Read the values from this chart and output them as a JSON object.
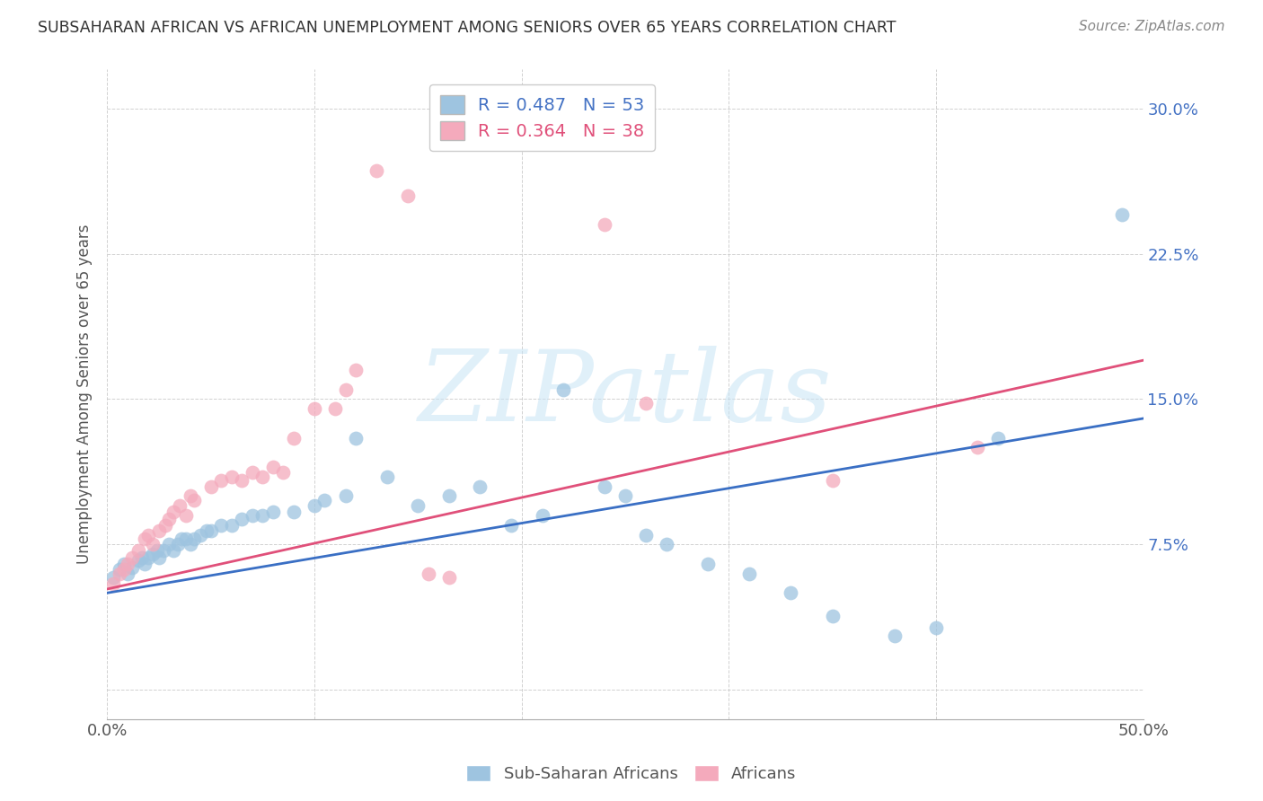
{
  "title": "SUBSAHARAN AFRICAN VS AFRICAN UNEMPLOYMENT AMONG SENIORS OVER 65 YEARS CORRELATION CHART",
  "source": "Source: ZipAtlas.com",
  "ylabel": "Unemployment Among Seniors over 65 years",
  "xlim": [
    0.0,
    0.5
  ],
  "ylim": [
    -0.015,
    0.32
  ],
  "xticks": [
    0.0,
    0.1,
    0.2,
    0.3,
    0.4,
    0.5
  ],
  "xtick_labels": [
    "0.0%",
    "",
    "",
    "",
    "",
    "50.0%"
  ],
  "yticks": [
    0.0,
    0.075,
    0.15,
    0.225,
    0.3
  ],
  "ytick_labels": [
    "",
    "7.5%",
    "15.0%",
    "22.5%",
    "30.0%"
  ],
  "legend_labels": [
    "Sub-Saharan Africans",
    "Africans"
  ],
  "blue_color": "#9EC4E0",
  "pink_color": "#F4AABC",
  "blue_line_color": "#3A6FC4",
  "pink_line_color": "#E0507A",
  "legend_text_color": "#4472C4",
  "R_blue": 0.487,
  "N_blue": 53,
  "R_pink": 0.364,
  "N_pink": 38,
  "watermark": "ZIPatlas",
  "blue_points": [
    [
      0.003,
      0.058
    ],
    [
      0.006,
      0.062
    ],
    [
      0.008,
      0.065
    ],
    [
      0.01,
      0.06
    ],
    [
      0.012,
      0.063
    ],
    [
      0.015,
      0.067
    ],
    [
      0.017,
      0.068
    ],
    [
      0.018,
      0.065
    ],
    [
      0.02,
      0.068
    ],
    [
      0.022,
      0.07
    ],
    [
      0.024,
      0.072
    ],
    [
      0.025,
      0.068
    ],
    [
      0.027,
      0.072
    ],
    [
      0.03,
      0.075
    ],
    [
      0.032,
      0.072
    ],
    [
      0.034,
      0.075
    ],
    [
      0.036,
      0.078
    ],
    [
      0.038,
      0.078
    ],
    [
      0.04,
      0.075
    ],
    [
      0.042,
      0.078
    ],
    [
      0.045,
      0.08
    ],
    [
      0.048,
      0.082
    ],
    [
      0.05,
      0.082
    ],
    [
      0.055,
      0.085
    ],
    [
      0.06,
      0.085
    ],
    [
      0.065,
      0.088
    ],
    [
      0.07,
      0.09
    ],
    [
      0.075,
      0.09
    ],
    [
      0.08,
      0.092
    ],
    [
      0.09,
      0.092
    ],
    [
      0.1,
      0.095
    ],
    [
      0.105,
      0.098
    ],
    [
      0.115,
      0.1
    ],
    [
      0.12,
      0.13
    ],
    [
      0.135,
      0.11
    ],
    [
      0.15,
      0.095
    ],
    [
      0.165,
      0.1
    ],
    [
      0.18,
      0.105
    ],
    [
      0.195,
      0.085
    ],
    [
      0.21,
      0.09
    ],
    [
      0.22,
      0.155
    ],
    [
      0.24,
      0.105
    ],
    [
      0.25,
      0.1
    ],
    [
      0.26,
      0.08
    ],
    [
      0.27,
      0.075
    ],
    [
      0.29,
      0.065
    ],
    [
      0.31,
      0.06
    ],
    [
      0.33,
      0.05
    ],
    [
      0.35,
      0.038
    ],
    [
      0.38,
      0.028
    ],
    [
      0.4,
      0.032
    ],
    [
      0.43,
      0.13
    ],
    [
      0.49,
      0.245
    ]
  ],
  "pink_points": [
    [
      0.003,
      0.055
    ],
    [
      0.006,
      0.06
    ],
    [
      0.008,
      0.062
    ],
    [
      0.01,
      0.065
    ],
    [
      0.012,
      0.068
    ],
    [
      0.015,
      0.072
    ],
    [
      0.018,
      0.078
    ],
    [
      0.02,
      0.08
    ],
    [
      0.022,
      0.075
    ],
    [
      0.025,
      0.082
    ],
    [
      0.028,
      0.085
    ],
    [
      0.03,
      0.088
    ],
    [
      0.032,
      0.092
    ],
    [
      0.035,
      0.095
    ],
    [
      0.038,
      0.09
    ],
    [
      0.04,
      0.1
    ],
    [
      0.042,
      0.098
    ],
    [
      0.05,
      0.105
    ],
    [
      0.055,
      0.108
    ],
    [
      0.06,
      0.11
    ],
    [
      0.065,
      0.108
    ],
    [
      0.07,
      0.112
    ],
    [
      0.075,
      0.11
    ],
    [
      0.08,
      0.115
    ],
    [
      0.085,
      0.112
    ],
    [
      0.09,
      0.13
    ],
    [
      0.1,
      0.145
    ],
    [
      0.11,
      0.145
    ],
    [
      0.115,
      0.155
    ],
    [
      0.12,
      0.165
    ],
    [
      0.13,
      0.268
    ],
    [
      0.145,
      0.255
    ],
    [
      0.155,
      0.06
    ],
    [
      0.165,
      0.058
    ],
    [
      0.24,
      0.24
    ],
    [
      0.26,
      0.148
    ],
    [
      0.35,
      0.108
    ],
    [
      0.42,
      0.125
    ]
  ]
}
